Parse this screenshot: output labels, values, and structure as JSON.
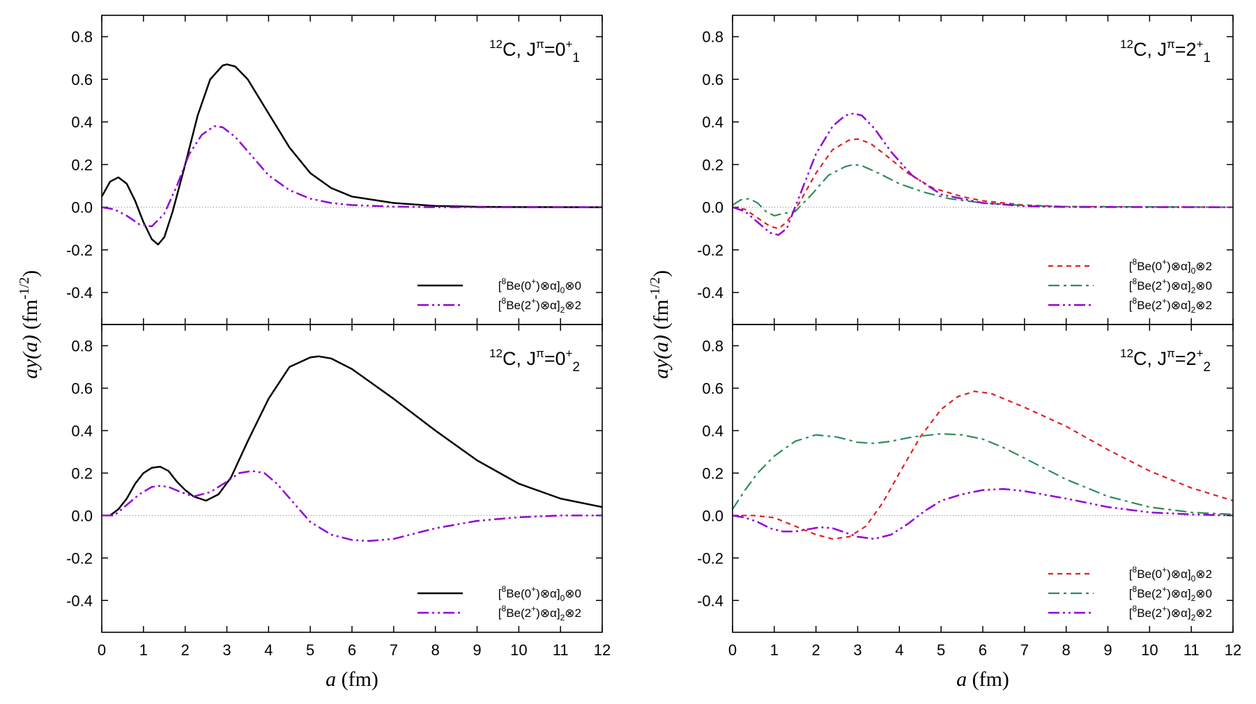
{
  "chart_data": {
    "type": "line",
    "x_axis": {
      "label_var": "a",
      "label_unit": " (fm)",
      "range": [
        0,
        12
      ],
      "ticks": [
        0,
        1,
        2,
        3,
        4,
        5,
        6,
        7,
        8,
        9,
        10,
        11,
        12
      ]
    },
    "y_axis": {
      "label_var": "ay(a)",
      "label_unit": " (fm",
      "label_exp": "-1/2",
      "label_close": ")",
      "range": [
        -0.55,
        0.9
      ],
      "ticks": [
        0.8,
        0.6,
        0.4,
        0.2,
        0.0,
        -0.2,
        -0.4
      ],
      "tick_labels": [
        "0.8",
        "0.6",
        "0.4",
        "0.2",
        "0.0",
        "-0.2",
        "-0.4"
      ]
    },
    "series_styles": {
      "be0_l0": {
        "color": "#000000",
        "dash": "",
        "width": 2.5
      },
      "be2_l2": {
        "color": "#9400d3",
        "dash": "16,5,3,5,3,5",
        "width": 2.5
      },
      "be0_l2": {
        "color": "#e02020",
        "dash": "7,6",
        "width": 2.2
      },
      "be2_l0": {
        "color": "#2e8b57",
        "dash": "16,6,4,6",
        "width": 2.2
      }
    },
    "panels": [
      {
        "id": "top-left",
        "title": {
          "nucleus_mass": "12",
          "nucleus": "C, J",
          "pi": "π",
          "eq": "=0",
          "parity": "+",
          "index": "1"
        },
        "legend": [
          {
            "key": "be0_l0",
            "text": {
              "open": "[",
              "mass": "8",
              "core": "Be(0",
              "parity": "+",
              "mid": ")⊗α]",
              "sub": "0",
              "end": "⊗0"
            }
          },
          {
            "key": "be2_l2",
            "text": {
              "open": "[",
              "mass": "8",
              "core": "Be(2",
              "parity": "+",
              "mid": ")⊗α]",
              "sub": "2",
              "end": "⊗2"
            }
          }
        ],
        "series": [
          {
            "key": "be0_l0",
            "x": [
              0,
              0.2,
              0.4,
              0.6,
              0.8,
              1.0,
              1.2,
              1.35,
              1.5,
              1.7,
              2.0,
              2.3,
              2.6,
              2.9,
              3.0,
              3.2,
              3.5,
              4.0,
              4.5,
              5.0,
              5.5,
              6.0,
              7.0,
              8.0,
              9.0,
              10.0,
              12.0
            ],
            "y": [
              0.05,
              0.12,
              0.14,
              0.11,
              0.03,
              -0.07,
              -0.15,
              -0.175,
              -0.14,
              -0.02,
              0.2,
              0.43,
              0.6,
              0.665,
              0.67,
              0.66,
              0.6,
              0.44,
              0.28,
              0.16,
              0.09,
              0.05,
              0.02,
              0.006,
              0.002,
              0.0005,
              0.0
            ]
          },
          {
            "key": "be2_l2",
            "x": [
              0,
              0.3,
              0.6,
              0.9,
              1.2,
              1.5,
              1.8,
              2.1,
              2.4,
              2.7,
              2.9,
              3.2,
              3.6,
              4.0,
              4.5,
              5.0,
              5.5,
              6.0,
              7.0,
              8.0,
              12.0
            ],
            "y": [
              0.0,
              -0.01,
              -0.04,
              -0.08,
              -0.09,
              -0.03,
              0.1,
              0.25,
              0.34,
              0.38,
              0.375,
              0.33,
              0.24,
              0.15,
              0.08,
              0.04,
              0.02,
              0.01,
              0.003,
              0.0,
              0.0
            ]
          }
        ]
      },
      {
        "id": "top-right",
        "title": {
          "nucleus_mass": "12",
          "nucleus": "C, J",
          "pi": "π",
          "eq": "=2",
          "parity": "+",
          "index": "1"
        },
        "legend": [
          {
            "key": "be0_l2",
            "text": {
              "open": "[",
              "mass": "8",
              "core": "Be(0",
              "parity": "+",
              "mid": ")⊗α]",
              "sub": "0",
              "end": "⊗2"
            }
          },
          {
            "key": "be2_l0",
            "text": {
              "open": "[",
              "mass": "8",
              "core": "Be(2",
              "parity": "+",
              "mid": ")⊗α]",
              "sub": "2",
              "end": "⊗0"
            }
          },
          {
            "key": "be2_l2",
            "text": {
              "open": "[",
              "mass": "8",
              "core": "Be(2",
              "parity": "+",
              "mid": ")⊗α]",
              "sub": "2",
              "end": "⊗2"
            }
          }
        ],
        "series": [
          {
            "key": "be0_l2",
            "x": [
              0,
              0.3,
              0.6,
              0.9,
              1.1,
              1.3,
              1.6,
              2.0,
              2.4,
              2.8,
              3.0,
              3.3,
              3.7,
              4.2,
              4.8,
              5.5,
              6.0,
              7.0,
              8.0,
              12.0
            ],
            "y": [
              0.0,
              -0.01,
              -0.05,
              -0.09,
              -0.1,
              -0.07,
              0.02,
              0.16,
              0.27,
              0.315,
              0.32,
              0.3,
              0.24,
              0.16,
              0.09,
              0.05,
              0.03,
              0.01,
              0.003,
              0.0
            ]
          },
          {
            "key": "be2_l0",
            "x": [
              0,
              0.2,
              0.4,
              0.6,
              0.8,
              1.0,
              1.2,
              1.5,
              1.9,
              2.3,
              2.7,
              2.9,
              3.1,
              3.5,
              4.0,
              4.6,
              5.2,
              6.0,
              7.0,
              8.0,
              12.0
            ],
            "y": [
              0.01,
              0.035,
              0.04,
              0.02,
              -0.02,
              -0.04,
              -0.03,
              -0.02,
              0.06,
              0.15,
              0.19,
              0.2,
              0.195,
              0.16,
              0.11,
              0.07,
              0.04,
              0.02,
              0.008,
              0.003,
              0.0
            ]
          },
          {
            "key": "be2_l2",
            "x": [
              0,
              0.3,
              0.6,
              0.9,
              1.1,
              1.3,
              1.6,
              2.0,
              2.4,
              2.7,
              2.9,
              3.1,
              3.4,
              3.8,
              4.3,
              5.0,
              6.0,
              7.0,
              8.0,
              12.0
            ],
            "y": [
              0.0,
              -0.02,
              -0.07,
              -0.12,
              -0.13,
              -0.1,
              0.05,
              0.25,
              0.38,
              0.43,
              0.44,
              0.43,
              0.37,
              0.26,
              0.15,
              0.06,
              0.02,
              0.005,
              0.001,
              0.0
            ]
          }
        ]
      },
      {
        "id": "bottom-left",
        "title": {
          "nucleus_mass": "12",
          "nucleus": "C, J",
          "pi": "π",
          "eq": "=0",
          "parity": "+",
          "index": "2"
        },
        "legend": [
          {
            "key": "be0_l0",
            "text": {
              "open": "[",
              "mass": "8",
              "core": "Be(0",
              "parity": "+",
              "mid": ")⊗α]",
              "sub": "0",
              "end": "⊗0"
            }
          },
          {
            "key": "be2_l2",
            "text": {
              "open": "[",
              "mass": "8",
              "core": "Be(2",
              "parity": "+",
              "mid": ")⊗α]",
              "sub": "2",
              "end": "⊗2"
            }
          }
        ],
        "series": [
          {
            "key": "be0_l0",
            "x": [
              0,
              0.2,
              0.4,
              0.6,
              0.8,
              1.0,
              1.2,
              1.4,
              1.6,
              1.8,
              2.0,
              2.2,
              2.5,
              2.8,
              3.1,
              3.5,
              4.0,
              4.5,
              5.0,
              5.2,
              5.5,
              6.0,
              7.0,
              8.0,
              9.0,
              10.0,
              11.0,
              12.0
            ],
            "y": [
              0.0,
              0.0,
              0.03,
              0.08,
              0.15,
              0.2,
              0.225,
              0.23,
              0.21,
              0.16,
              0.12,
              0.09,
              0.07,
              0.1,
              0.18,
              0.35,
              0.55,
              0.7,
              0.745,
              0.75,
              0.74,
              0.69,
              0.55,
              0.4,
              0.26,
              0.15,
              0.08,
              0.04
            ]
          },
          {
            "key": "be2_l2",
            "x": [
              0,
              0.3,
              0.6,
              0.9,
              1.2,
              1.4,
              1.6,
              1.9,
              2.2,
              2.6,
              3.0,
              3.3,
              3.6,
              3.9,
              4.2,
              4.6,
              5.0,
              5.5,
              6.0,
              6.4,
              7.0,
              8.0,
              9.0,
              10.0,
              11.0,
              12.0
            ],
            "y": [
              0.0,
              0.0,
              0.05,
              0.1,
              0.135,
              0.14,
              0.135,
              0.11,
              0.09,
              0.11,
              0.16,
              0.2,
              0.21,
              0.2,
              0.15,
              0.06,
              -0.03,
              -0.09,
              -0.115,
              -0.12,
              -0.11,
              -0.06,
              -0.025,
              -0.008,
              0.0,
              0.0
            ]
          }
        ]
      },
      {
        "id": "bottom-right",
        "title": {
          "nucleus_mass": "12",
          "nucleus": "C, J",
          "pi": "π",
          "eq": "=2",
          "parity": "+",
          "index": "2"
        },
        "legend": [
          {
            "key": "be0_l2",
            "text": {
              "open": "[",
              "mass": "8",
              "core": "Be(0",
              "parity": "+",
              "mid": ")⊗α]",
              "sub": "0",
              "end": "⊗2"
            }
          },
          {
            "key": "be2_l0",
            "text": {
              "open": "[",
              "mass": "8",
              "core": "Be(2",
              "parity": "+",
              "mid": ")⊗α]",
              "sub": "2",
              "end": "⊗0"
            }
          },
          {
            "key": "be2_l2",
            "text": {
              "open": "[",
              "mass": "8",
              "core": "Be(2",
              "parity": "+",
              "mid": ")⊗α]",
              "sub": "2",
              "end": "⊗2"
            }
          }
        ],
        "series": [
          {
            "key": "be0_l2",
            "x": [
              0,
              0.5,
              1.0,
              1.5,
              2.0,
              2.4,
              2.8,
              3.2,
              3.6,
              4.0,
              4.5,
              5.0,
              5.4,
              5.8,
              6.2,
              7.0,
              8.0,
              9.0,
              10.0,
              11.0,
              12.0
            ],
            "y": [
              0.0,
              0.0,
              -0.01,
              -0.05,
              -0.09,
              -0.11,
              -0.1,
              -0.05,
              0.06,
              0.2,
              0.37,
              0.5,
              0.56,
              0.585,
              0.575,
              0.51,
              0.42,
              0.31,
              0.21,
              0.13,
              0.07
            ]
          },
          {
            "key": "be2_l0",
            "x": [
              0,
              0.3,
              0.6,
              1.0,
              1.5,
              2.0,
              2.5,
              3.0,
              3.4,
              3.8,
              4.3,
              5.0,
              5.5,
              6.0,
              6.5,
              7.0,
              8.0,
              9.0,
              10.0,
              11.0,
              12.0
            ],
            "y": [
              0.03,
              0.12,
              0.2,
              0.28,
              0.35,
              0.38,
              0.37,
              0.345,
              0.34,
              0.35,
              0.37,
              0.385,
              0.38,
              0.36,
              0.32,
              0.27,
              0.17,
              0.09,
              0.04,
              0.015,
              0.005
            ]
          },
          {
            "key": "be2_l2",
            "x": [
              0,
              0.3,
              0.6,
              0.9,
              1.2,
              1.5,
              1.8,
              2.1,
              2.4,
              2.7,
              3.0,
              3.4,
              3.8,
              4.2,
              4.6,
              5.0,
              5.5,
              6.0,
              6.5,
              7.0,
              8.0,
              9.0,
              10.0,
              11.0,
              12.0
            ],
            "y": [
              0.0,
              -0.01,
              -0.03,
              -0.06,
              -0.075,
              -0.075,
              -0.065,
              -0.055,
              -0.06,
              -0.08,
              -0.1,
              -0.11,
              -0.09,
              -0.04,
              0.02,
              0.07,
              0.1,
              0.12,
              0.125,
              0.115,
              0.08,
              0.04,
              0.015,
              0.005,
              0.0
            ]
          }
        ]
      }
    ]
  }
}
